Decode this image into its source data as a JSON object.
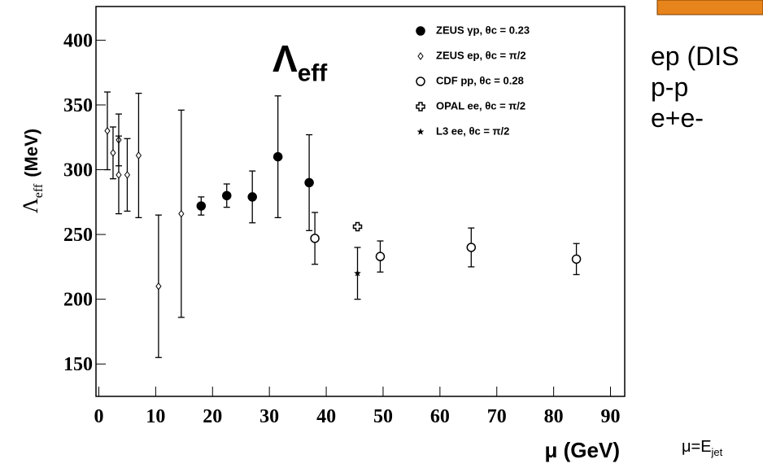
{
  "chart_data": {
    "type": "errorbar",
    "xlabel": "μ  (GeV)",
    "ylabel": {
      "text": "Λ",
      "sub": "eff",
      "unit": "(MeV)"
    },
    "xlim": [
      -0.5,
      92.5
    ],
    "ylim": [
      125,
      426
    ],
    "xticks": [
      0,
      10,
      20,
      30,
      40,
      50,
      60,
      70,
      80,
      90
    ],
    "yticks": [
      150,
      200,
      250,
      300,
      350,
      400
    ],
    "series": [
      {
        "name": "ZEUS γp, θc = 0.23",
        "marker": "filled-circle",
        "color": "#000000",
        "x": [
          18,
          22.5,
          27,
          31.5,
          37
        ],
        "values": [
          272,
          280,
          279,
          310,
          290
        ],
        "errors": [
          7,
          9,
          20,
          47,
          37
        ]
      },
      {
        "name": "ZEUS ep, θc = π/2",
        "marker": "diamond",
        "color": "#000000",
        "x": [
          1.5,
          2.5,
          3.5,
          3.5,
          5,
          7,
          10.5,
          14.5
        ],
        "values": [
          330,
          313,
          323,
          296,
          296,
          311,
          210,
          266
        ],
        "errors": [
          30,
          20,
          20,
          30,
          28,
          48,
          55,
          80
        ]
      },
      {
        "name": "CDF pp, θc = 0.28",
        "marker": "open-circle",
        "color": "#000000",
        "x": [
          38,
          49.5,
          65.5,
          84
        ],
        "values": [
          247,
          233,
          240,
          231
        ],
        "errors": [
          20,
          12,
          15,
          12
        ]
      },
      {
        "name": "OPAL ee, θc = π/2",
        "marker": "cross",
        "color": "#000000",
        "x": [
          45.5
        ],
        "values": [
          256
        ],
        "errors": [
          null
        ]
      },
      {
        "name": "L3 ee, θc = π/2",
        "marker": "star",
        "color": "#000000",
        "x": [
          45.5
        ],
        "values": [
          220
        ],
        "errors": [
          20
        ]
      }
    ],
    "annotations": [
      {
        "text": "Λ",
        "sub": "eff"
      },
      {
        "text": "ep (DIS"
      },
      {
        "text": "p-p"
      },
      {
        "text": "e+e-"
      },
      {
        "text": "μ=E",
        "sub": "jet"
      }
    ]
  }
}
